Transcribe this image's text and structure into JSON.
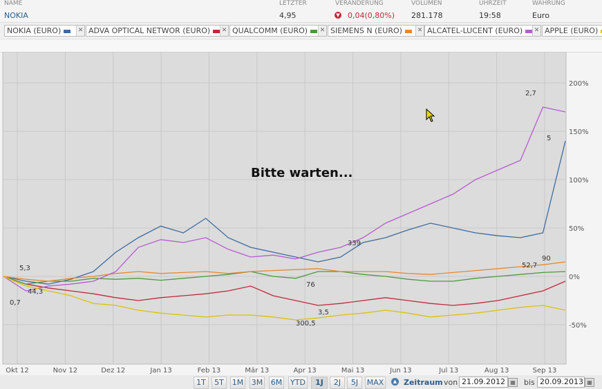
{
  "table": {
    "headers": {
      "name": "NAME",
      "last": "LETZTER",
      "change": "VERÄNDERUNG",
      "volume": "VOLUMEN",
      "time": "UHRZEIT",
      "currency": "WÄHRUNG"
    },
    "row": {
      "name": "NOKIA",
      "last": "4,95",
      "change": "0,04(0,80%)",
      "volume": "281.178",
      "time": "19:58",
      "currency": "Euro"
    }
  },
  "chips": [
    {
      "label": "NOKIA (EURO)",
      "color": "#3d6a9e"
    },
    {
      "label": "ADVA OPTICAL NETWOR (EURO)",
      "color": "#c0283a"
    },
    {
      "label": "QUALCOMM (EURO)",
      "color": "#4a9a3a"
    },
    {
      "label": "SIEMENS N (EURO)",
      "color": "#e8882a"
    },
    {
      "label": "ALCATEL-LUCENT (EURO)",
      "color": "#b65bd0"
    },
    {
      "label": "APPLE (EURO)",
      "color": "#d8c400"
    }
  ],
  "loading_text": "Bitte warten...",
  "chart_data": {
    "type": "line",
    "x_ticks": [
      "Okt 12",
      "Nov 12",
      "Dez 12",
      "Jan 13",
      "Feb 13",
      "Mär 13",
      "Apr 13",
      "Mai 13",
      "Jun 13",
      "Jul 13",
      "Aug 13",
      "Sep 13"
    ],
    "y_ticks": [
      "200%",
      "150%",
      "100%",
      "50%",
      "0%",
      "-50%"
    ],
    "ylim": [
      -85,
      200
    ],
    "grid": true,
    "series": [
      {
        "name": "NOKIA (EURO)",
        "color": "#3d6a9e",
        "values": [
          0,
          -5,
          -8,
          -3,
          5,
          25,
          40,
          52,
          45,
          60,
          40,
          30,
          25,
          20,
          15,
          20,
          35,
          40,
          48,
          55,
          50,
          45,
          42,
          40,
          45,
          140
        ]
      },
      {
        "name": "ADVA OPTICAL NETWOR (EURO)",
        "color": "#c0283a",
        "values": [
          0,
          -8,
          -12,
          -15,
          -18,
          -22,
          -25,
          -22,
          -20,
          -18,
          -15,
          -10,
          -20,
          -25,
          -30,
          -28,
          -25,
          -22,
          -25,
          -28,
          -30,
          -28,
          -25,
          -20,
          -15,
          -5
        ]
      },
      {
        "name": "QUALCOMM (EURO)",
        "color": "#4a9a3a",
        "values": [
          0,
          -8,
          -5,
          -5,
          -2,
          -3,
          -2,
          -4,
          -2,
          0,
          2,
          5,
          0,
          -2,
          5,
          5,
          2,
          0,
          -3,
          -5,
          -5,
          -2,
          0,
          2,
          4,
          5
        ]
      },
      {
        "name": "SIEMENS N (EURO)",
        "color": "#e8882a",
        "values": [
          0,
          -3,
          -5,
          -2,
          0,
          3,
          5,
          3,
          4,
          5,
          3,
          5,
          6,
          7,
          8,
          5,
          5,
          5,
          3,
          2,
          4,
          6,
          8,
          10,
          12,
          15
        ]
      },
      {
        "name": "ALCATEL-LUCENT (EURO)",
        "color": "#b65bd0",
        "values": [
          0,
          -15,
          -10,
          -8,
          -5,
          5,
          30,
          38,
          35,
          40,
          28,
          20,
          22,
          18,
          25,
          30,
          40,
          55,
          65,
          75,
          85,
          100,
          110,
          120,
          175,
          170
        ]
      },
      {
        "name": "APPLE (EURO)",
        "color": "#d8c400",
        "values": [
          0,
          -10,
          -15,
          -20,
          -28,
          -30,
          -35,
          -38,
          -40,
          -42,
          -40,
          -40,
          -42,
          -45,
          -43,
          -40,
          -38,
          -35,
          -38,
          -42,
          -40,
          -38,
          -35,
          -32,
          -30,
          -35
        ]
      }
    ],
    "annotations": [
      "5,3",
      "0,7",
      "44,3",
      "76",
      "339",
      "3,5",
      "300,5",
      "52,7",
      "90",
      "2,7",
      "5"
    ]
  },
  "controls": {
    "periods": [
      "1T",
      "5T",
      "1M",
      "3M",
      "6M",
      "YTD",
      "1J",
      "2J",
      "5J",
      "MAX"
    ],
    "active_period": "1J",
    "range_label": "Zeitraum",
    "from_label": "von",
    "from_date": "21.09.2012",
    "to_label": "bis",
    "to_date": "20.09.2013"
  }
}
